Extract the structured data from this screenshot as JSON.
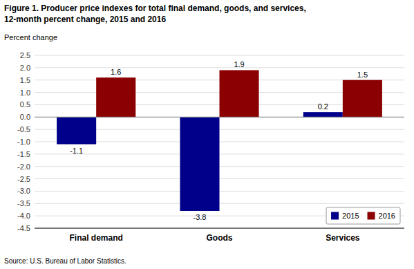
{
  "chart_data": {
    "type": "bar",
    "title": "Figure 1. Producer price indexes for total final demand, goods, and services,",
    "subtitle": "12-month percent change, 2015 and 2016",
    "ylabel": "Percent change",
    "annotations": [
      "Source: U.S. Bureau of Labor Statistics."
    ],
    "categories": [
      "Final demand",
      "Goods",
      "Services"
    ],
    "series": [
      {
        "name": "2015",
        "color": "#00008B",
        "values": [
          -1.1,
          -3.8,
          0.2
        ]
      },
      {
        "name": "2016",
        "color": "#8B0000",
        "values": [
          1.6,
          1.9,
          1.5
        ]
      }
    ],
    "ylim": [
      -4.5,
      2.5
    ],
    "yticks": [
      -4.5,
      {
        "value": -4.0,
        "label": "-4.0"
      },
      -3.5,
      {
        "value": -3.0,
        "label": "-3.0"
      },
      -2.5,
      {
        "value": -2.0,
        "label": "-2.0"
      },
      -1.5,
      {
        "value": -1.0,
        "label": "-1.0"
      },
      -0.5,
      {
        "value": 0.0,
        "label": "0.0"
      },
      0.5,
      {
        "value": 1.0,
        "label": "1.0"
      },
      1.5,
      {
        "value": 2.0,
        "label": "2.0"
      },
      2.5
    ],
    "grid": true,
    "legend": "lower right",
    "data_labels": true
  }
}
